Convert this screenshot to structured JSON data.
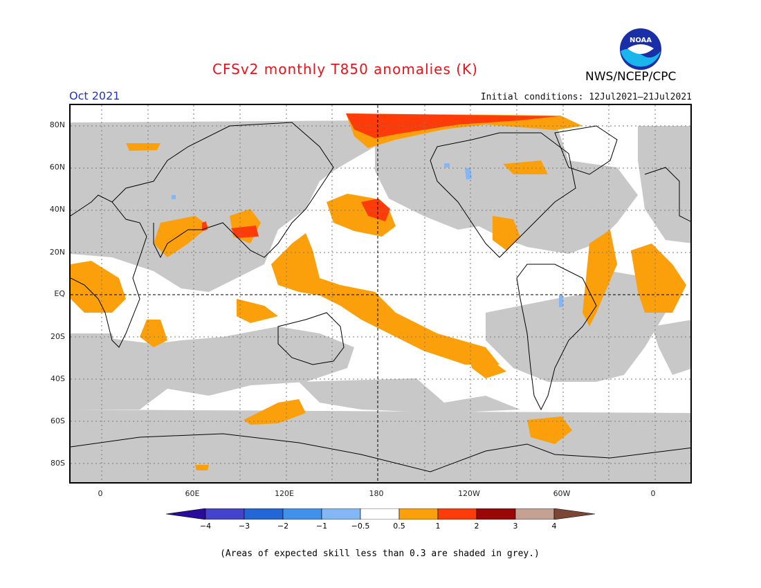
{
  "title": "CFSv2 monthly T850 anomalies (K)",
  "month": "Oct 2021",
  "initial_conditions": "Initial conditions: 12Jul2021–21Jul2021",
  "agency": "NWS/NCEP/CPC",
  "logo": {
    "text": "NOAA",
    "icon": "noaa-logo"
  },
  "map": {
    "projection": "equirectangular, centered 180",
    "lat_labels": [
      "80N",
      "60N",
      "40N",
      "20N",
      "EQ",
      "20S",
      "40S",
      "60S",
      "80S"
    ],
    "lon_labels": [
      "0",
      "60E",
      "120E",
      "180",
      "120W",
      "60W",
      "0"
    ],
    "colors": {
      "grey_low_skill": "#c8c8c8",
      "near_zero": "#ffffff",
      "plus_0_5_to_1": "#fba00a",
      "plus_1_to_2": "#fd3c09",
      "minus_0_5_to_1": "#83b7f5",
      "coast": "#000000"
    }
  },
  "colorbar": {
    "labels": [
      "−4",
      "−3",
      "−2",
      "−1",
      "−0.5",
      "0.5",
      "1",
      "2",
      "3",
      "4"
    ],
    "colors": [
      "#2a0c9c",
      "#4343cd",
      "#2366d8",
      "#4191ec",
      "#83b7f5",
      "#ffffff",
      "#fba00a",
      "#fd3c09",
      "#9b0706",
      "#c5a193",
      "#7c4634"
    ]
  },
  "note": "(Areas of expected skill less than 0.3 are shaded in grey.)"
}
